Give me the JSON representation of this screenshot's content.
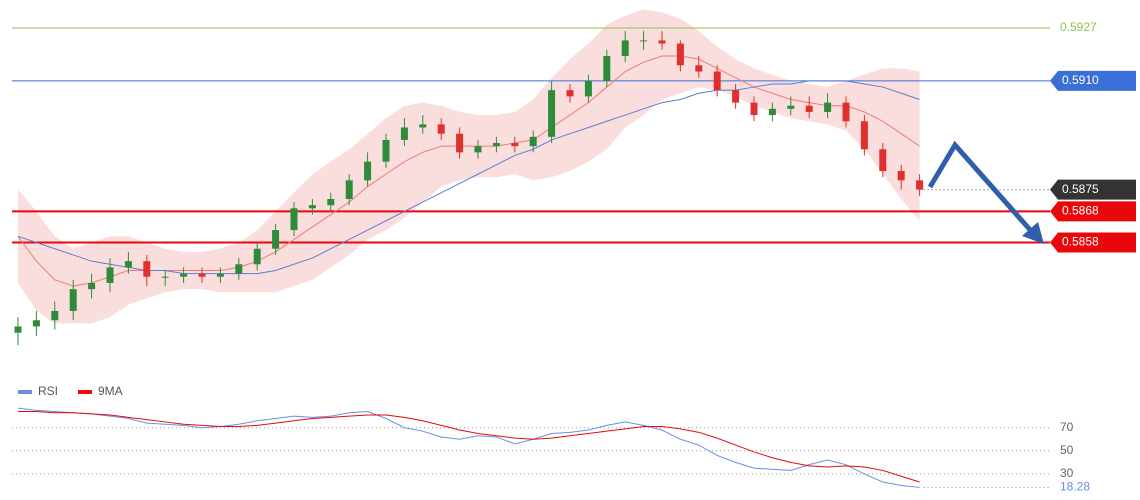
{
  "chart_data": [
    {
      "type": "candlestick",
      "ylim": [
        0.5817,
        0.5936
      ],
      "up_color": "#2e8b3a",
      "down_color": "#e0302c",
      "open": [
        0.5829,
        0.5831,
        0.5833,
        0.5836,
        0.5843,
        0.5845,
        0.585,
        0.5852,
        0.5847,
        0.5847,
        0.5848,
        0.5847,
        0.5848,
        0.5851,
        0.5856,
        0.5862,
        0.5869,
        0.587,
        0.5872,
        0.5878,
        0.5884,
        0.5891,
        0.5895,
        0.5896,
        0.5893,
        0.5887,
        0.5889,
        0.589,
        0.5889,
        0.5892,
        0.5907,
        0.5905,
        0.591,
        0.5918,
        0.5923,
        0.5923,
        0.5922,
        0.5915,
        0.5913,
        0.5907,
        0.5903,
        0.5899,
        0.5901,
        0.5902,
        0.59,
        0.5903,
        0.5897,
        0.5888,
        0.5881,
        0.5878
      ],
      "high": [
        0.5834,
        0.5836,
        0.5839,
        0.5846,
        0.5848,
        0.5853,
        0.5855,
        0.5854,
        0.5849,
        0.585,
        0.585,
        0.585,
        0.5853,
        0.5858,
        0.5864,
        0.5871,
        0.5872,
        0.5874,
        0.588,
        0.5887,
        0.5893,
        0.5898,
        0.5899,
        0.5898,
        0.5895,
        0.5891,
        0.5892,
        0.5892,
        0.5894,
        0.591,
        0.5909,
        0.5912,
        0.592,
        0.5926,
        0.5926,
        0.5926,
        0.5923,
        0.5918,
        0.5915,
        0.5909,
        0.5905,
        0.5903,
        0.5905,
        0.5905,
        0.5906,
        0.5905,
        0.5899,
        0.589,
        0.5883,
        0.588
      ],
      "low": [
        0.5825,
        0.5828,
        0.583,
        0.5833,
        0.584,
        0.5842,
        0.5848,
        0.5844,
        0.5844,
        0.5845,
        0.5845,
        0.5845,
        0.5846,
        0.5849,
        0.5854,
        0.586,
        0.5867,
        0.5868,
        0.587,
        0.5876,
        0.5882,
        0.5889,
        0.5893,
        0.5891,
        0.5885,
        0.5885,
        0.5887,
        0.5887,
        0.5887,
        0.589,
        0.5903,
        0.5903,
        0.5908,
        0.5916,
        0.592,
        0.592,
        0.5913,
        0.5911,
        0.5905,
        0.5901,
        0.5897,
        0.5897,
        0.5899,
        0.5898,
        0.5898,
        0.5895,
        0.5886,
        0.5879,
        0.5875,
        0.5873
      ],
      "close": [
        0.5831,
        0.5833,
        0.5836,
        0.5843,
        0.5845,
        0.585,
        0.5852,
        0.5847,
        0.5847,
        0.5848,
        0.5847,
        0.5848,
        0.5851,
        0.5856,
        0.5862,
        0.5869,
        0.587,
        0.5872,
        0.5878,
        0.5884,
        0.5891,
        0.5895,
        0.5896,
        0.5893,
        0.5887,
        0.5889,
        0.589,
        0.5889,
        0.5892,
        0.5907,
        0.5905,
        0.591,
        0.5918,
        0.5923,
        0.5923,
        0.5922,
        0.5915,
        0.5913,
        0.5907,
        0.5903,
        0.5899,
        0.5901,
        0.5902,
        0.59,
        0.5903,
        0.5897,
        0.5888,
        0.5881,
        0.5878,
        0.5875
      ],
      "band": {
        "color": "#f5b5b5",
        "upper": [
          0.5875,
          0.5868,
          0.586,
          0.5856,
          0.5858,
          0.586,
          0.586,
          0.5858,
          0.5856,
          0.5855,
          0.5855,
          0.5856,
          0.5858,
          0.5862,
          0.5868,
          0.5874,
          0.588,
          0.5884,
          0.5888,
          0.5893,
          0.5898,
          0.5902,
          0.5903,
          0.5902,
          0.59,
          0.5899,
          0.5899,
          0.59,
          0.5904,
          0.5911,
          0.5917,
          0.5922,
          0.5928,
          0.5931,
          0.5933,
          0.5932,
          0.593,
          0.5926,
          0.5921,
          0.5917,
          0.5914,
          0.5912,
          0.591,
          0.5909,
          0.5908,
          0.591,
          0.5912,
          0.5914,
          0.5914,
          0.5913
        ],
        "lower": [
          0.5845,
          0.5836,
          0.5832,
          0.5832,
          0.5832,
          0.5834,
          0.5838,
          0.584,
          0.5842,
          0.5843,
          0.5843,
          0.5842,
          0.5842,
          0.5842,
          0.5842,
          0.5844,
          0.5846,
          0.585,
          0.5854,
          0.5859,
          0.5862,
          0.5866,
          0.5871,
          0.5876,
          0.5878,
          0.5879,
          0.5879,
          0.588,
          0.5878,
          0.5879,
          0.5881,
          0.5884,
          0.5888,
          0.5895,
          0.5899,
          0.5904,
          0.5906,
          0.5908,
          0.5907,
          0.5905,
          0.5902,
          0.59,
          0.5898,
          0.5897,
          0.5896,
          0.5894,
          0.5888,
          0.588,
          0.5872,
          0.5865
        ]
      },
      "series": [
        {
          "color": "#f07a7a",
          "values": [
            0.586,
            0.5852,
            0.5846,
            0.5844,
            0.5845,
            0.5847,
            0.5849,
            0.5849,
            0.5849,
            0.5849,
            0.5849,
            0.5849,
            0.585,
            0.5852,
            0.5855,
            0.5859,
            0.5863,
            0.5867,
            0.5871,
            0.5876,
            0.588,
            0.5884,
            0.5887,
            0.5889,
            0.5889,
            0.5889,
            0.5889,
            0.589,
            0.5891,
            0.5895,
            0.5899,
            0.5903,
            0.5908,
            0.5913,
            0.5916,
            0.5918,
            0.5918,
            0.5917,
            0.5914,
            0.5911,
            0.5908,
            0.5906,
            0.5904,
            0.5903,
            0.5902,
            0.5902,
            0.59,
            0.5897,
            0.5893,
            0.5889
          ]
        },
        {
          "color": "#5b7fd0",
          "values": [
            0.586,
            0.5858,
            0.5856,
            0.5854,
            0.5852,
            0.5851,
            0.585,
            0.5849,
            0.5849,
            0.5848,
            0.5848,
            0.5848,
            0.5848,
            0.5848,
            0.5849,
            0.5851,
            0.5853,
            0.5856,
            0.5859,
            0.5862,
            0.5865,
            0.5868,
            0.5871,
            0.5874,
            0.5877,
            0.588,
            0.5883,
            0.5886,
            0.5888,
            0.5891,
            0.5893,
            0.5895,
            0.5897,
            0.5899,
            0.5901,
            0.5903,
            0.5904,
            0.5906,
            0.5907,
            0.5907,
            0.5908,
            0.5909,
            0.5909,
            0.591,
            0.591,
            0.591,
            0.5909,
            0.5908,
            0.5906,
            0.5904
          ]
        }
      ],
      "levels": [
        {
          "value": 0.5927,
          "color": "#8bc34a",
          "box": false
        },
        {
          "value": 0.591,
          "label": "0.5910",
          "color": "#3b6fd8",
          "box": true
        },
        {
          "value": 0.5868,
          "color": "#e8080c",
          "box": true
        },
        {
          "value": 0.5858,
          "color": "#e8080c",
          "box": true
        }
      ],
      "last_color": "#333333"
    },
    {
      "type": "line",
      "ylim": [
        10,
        94
      ],
      "yticks": [
        70,
        50,
        30
      ],
      "series": [
        {
          "name": "RSI",
          "color": "#6b8fe0",
          "values": [
            87,
            85,
            84,
            83,
            82,
            80,
            78,
            74,
            73,
            72,
            70,
            71,
            73,
            76,
            78,
            80,
            79,
            80,
            83,
            84,
            78,
            70,
            67,
            62,
            60,
            63,
            62,
            56,
            60,
            65,
            66,
            68,
            72,
            75,
            72,
            68,
            60,
            55,
            46,
            40,
            35,
            34,
            33,
            38,
            42,
            38,
            30,
            23,
            20,
            18.28
          ]
        },
        {
          "name": "9MA",
          "color": "#e8080c",
          "values": [
            84,
            84,
            83,
            83,
            82,
            81,
            79,
            77,
            75,
            73,
            72,
            71,
            71,
            72,
            74,
            76,
            78,
            79,
            80,
            81,
            81,
            79,
            76,
            72,
            68,
            65,
            63,
            61,
            60,
            61,
            63,
            65,
            67,
            69,
            71,
            71,
            69,
            66,
            61,
            55,
            49,
            44,
            40,
            37,
            36,
            37,
            36,
            33,
            28,
            23
          ]
        }
      ]
    }
  ]
}
